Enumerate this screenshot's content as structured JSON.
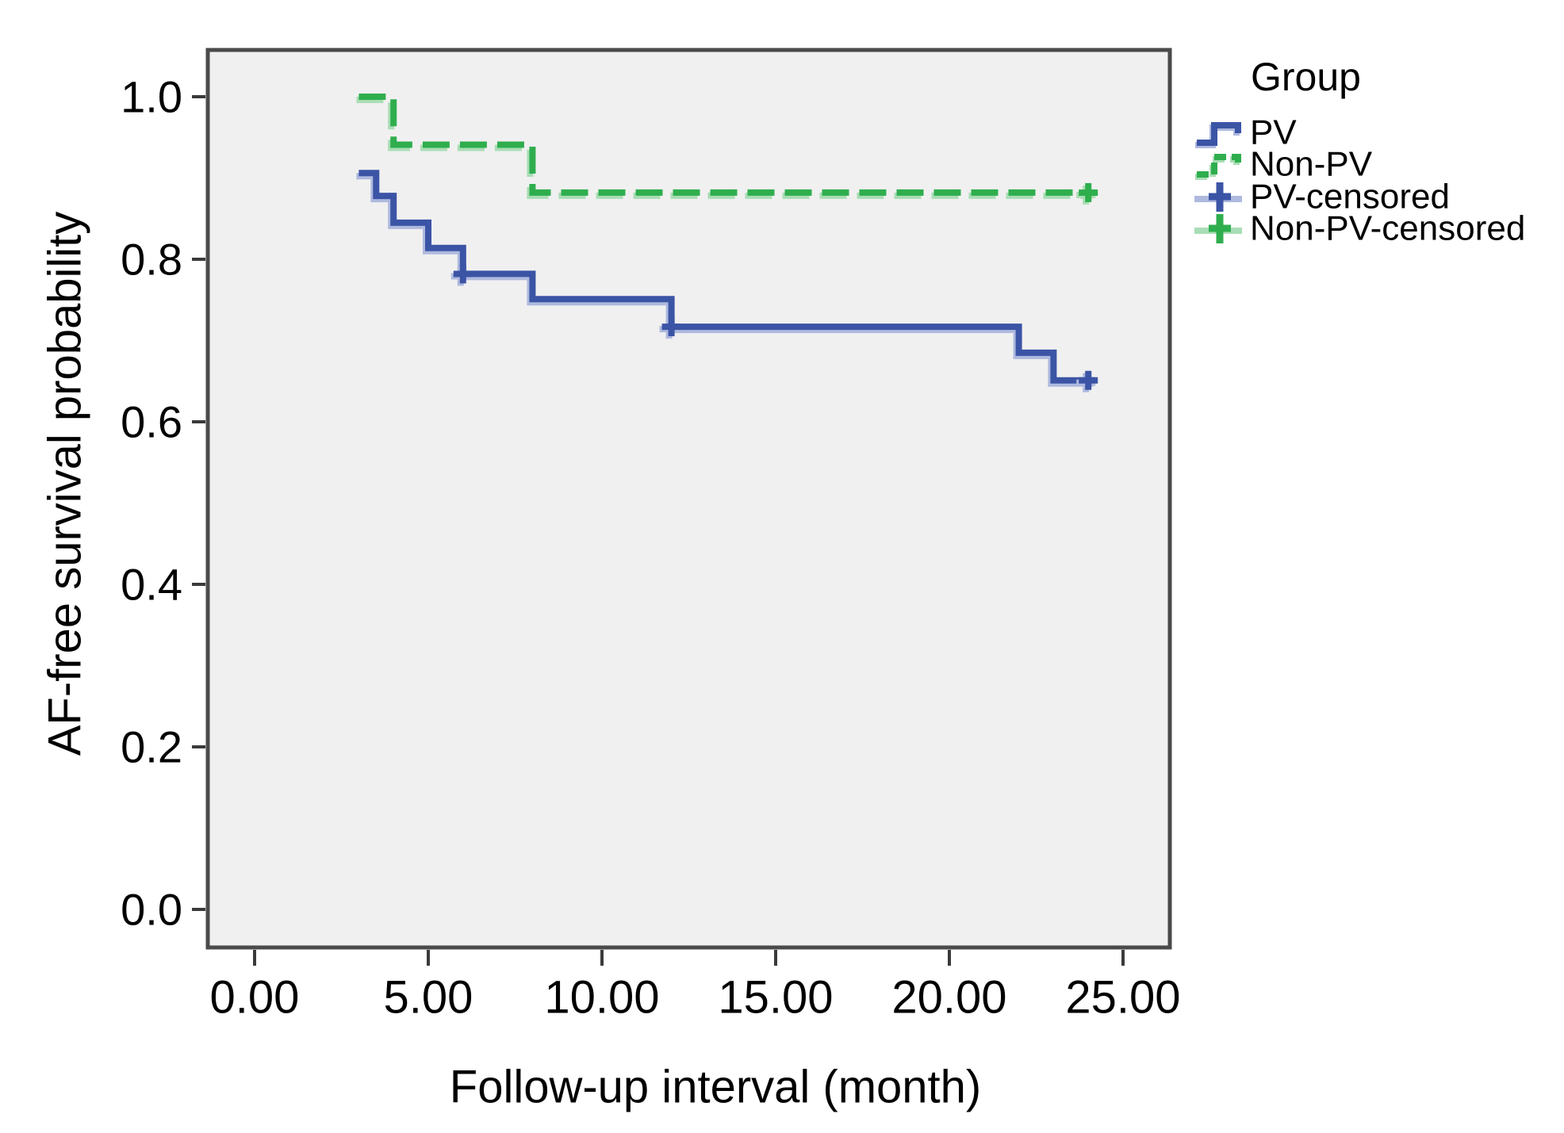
{
  "chart_data": {
    "type": "line",
    "subtype": "kaplan-meier-step",
    "title": "",
    "xlabel": "Follow-up interval (month)",
    "ylabel": "AF-free survival probability",
    "xlim": [
      -1.35,
      26.35
    ],
    "ylim": [
      -0.05,
      1.06
    ],
    "grid": false,
    "plot_bg_color": "#f0f0f0",
    "frame_color": "#4a4a4a",
    "tick_color": "#3a3a3a",
    "x_ticks": [
      {
        "value": 0,
        "label": "0.00"
      },
      {
        "value": 5,
        "label": "5.00"
      },
      {
        "value": 10,
        "label": "10.00"
      },
      {
        "value": 15,
        "label": "15.00"
      },
      {
        "value": 20,
        "label": "20.00"
      },
      {
        "value": 25,
        "label": "25.00"
      }
    ],
    "y_ticks": [
      {
        "value": 1.0,
        "label": "1.0"
      },
      {
        "value": 0.8,
        "label": "0.8"
      },
      {
        "value": 0.6,
        "label": "0.6"
      },
      {
        "value": 0.4,
        "label": "0.4"
      },
      {
        "value": 0.2,
        "label": "0.2"
      },
      {
        "value": 0.0,
        "label": "0.0"
      }
    ],
    "legend": {
      "title": "Group",
      "position": "right-top",
      "entries": [
        {
          "label": "PV",
          "symbol": "step-line",
          "style": "solid",
          "color": "#3b54a5"
        },
        {
          "label": "Non-PV",
          "symbol": "step-line",
          "style": "dashed",
          "color": "#2fae4e"
        },
        {
          "label": "PV-censored",
          "symbol": "censor-plus",
          "style": "solid",
          "color": "#3b54a5"
        },
        {
          "label": "Non-PV-censored",
          "symbol": "censor-plus",
          "style": "solid",
          "color": "#2fae4e"
        }
      ]
    },
    "series": [
      {
        "name": "PV",
        "color": "#3b54a5",
        "halo_color": "#aeb9de",
        "line_style": "solid",
        "steps": [
          [
            3.0,
            0.906
          ],
          [
            3.5,
            0.906
          ],
          [
            3.5,
            0.878
          ],
          [
            4.0,
            0.878
          ],
          [
            4.0,
            0.845
          ],
          [
            5.0,
            0.845
          ],
          [
            5.0,
            0.814
          ],
          [
            6.0,
            0.814
          ],
          [
            6.0,
            0.782
          ],
          [
            8.0,
            0.782
          ],
          [
            8.0,
            0.751
          ],
          [
            12.0,
            0.751
          ],
          [
            12.0,
            0.717
          ],
          [
            22.0,
            0.717
          ],
          [
            22.0,
            0.685
          ],
          [
            23.0,
            0.685
          ],
          [
            23.0,
            0.651
          ],
          [
            24.2,
            0.651
          ]
        ],
        "censored_points": [
          [
            6.0,
            0.782
          ],
          [
            12.0,
            0.717
          ],
          [
            24.0,
            0.651
          ]
        ]
      },
      {
        "name": "Non-PV",
        "color": "#2fae4e",
        "halo_color": "#a9ddb5",
        "line_style": "dashed",
        "steps": [
          [
            3.0,
            1.0
          ],
          [
            4.0,
            1.0
          ],
          [
            4.0,
            0.941
          ],
          [
            8.0,
            0.941
          ],
          [
            8.0,
            0.882
          ],
          [
            24.2,
            0.882
          ]
        ],
        "censored_points": [
          [
            24.0,
            0.882
          ]
        ]
      }
    ]
  }
}
